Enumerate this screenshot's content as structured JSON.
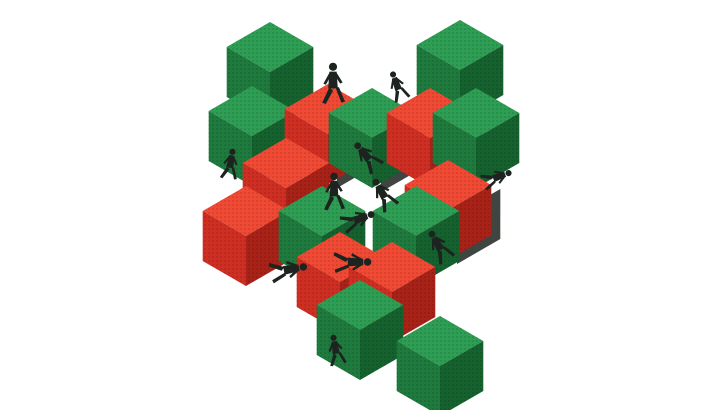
{
  "artwork": {
    "subject": "isometric-cube-cluster-with-walking-figures",
    "palette": {
      "background": "#ffffff",
      "green_top": "#2e9e54",
      "green_left": "#1f7a3e",
      "green_right": "#15622f",
      "red_top": "#f04a35",
      "red_left": "#cf2f22",
      "red_right": "#a82218",
      "figure": "#1d2420",
      "shadow": "#1d2420"
    }
  }
}
